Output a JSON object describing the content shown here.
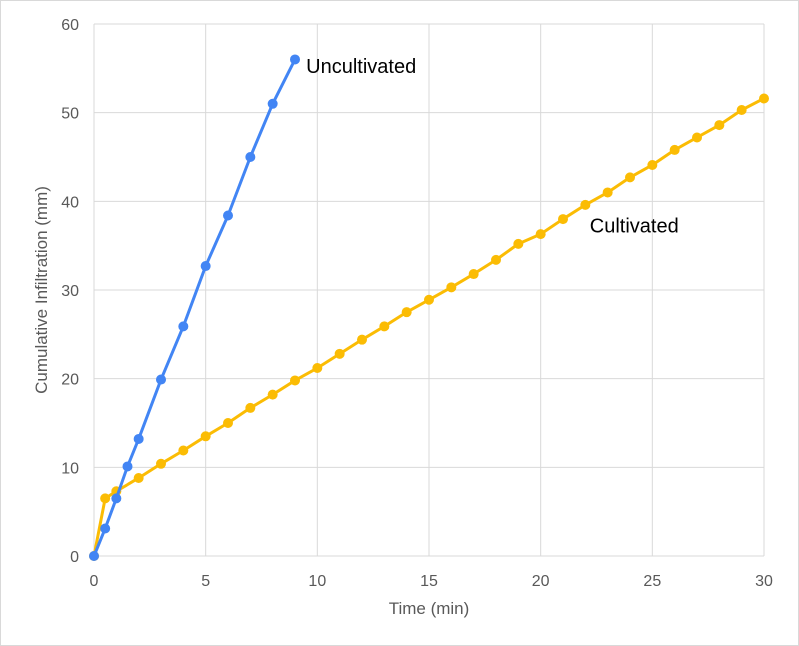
{
  "chart_data": {
    "type": "line",
    "title": "",
    "xlabel": "Time (min)",
    "ylabel": "Cumulative Infiltration (mm)",
    "xlim": [
      0,
      30
    ],
    "ylim": [
      0,
      60
    ],
    "xticks": [
      0,
      5,
      10,
      15,
      20,
      25,
      30
    ],
    "yticks": [
      0,
      10,
      20,
      30,
      40,
      50,
      60
    ],
    "grid": true,
    "legend": "none",
    "series": [
      {
        "name": "Uncultivated",
        "color": "#4285f4",
        "x": [
          0,
          0.5,
          1,
          1.5,
          2,
          3,
          4,
          5,
          6,
          7,
          8,
          9
        ],
        "y": [
          0,
          3.1,
          6.5,
          10.1,
          13.2,
          19.9,
          25.9,
          32.7,
          38.4,
          45.0,
          51.0,
          56.0
        ]
      },
      {
        "name": "Cultivated",
        "color": "#fbbc04",
        "x": [
          0,
          0.5,
          1,
          2,
          3,
          4,
          5,
          6,
          7,
          8,
          9,
          10,
          11,
          12,
          13,
          14,
          15,
          16,
          17,
          18,
          19,
          20,
          21,
          22,
          23,
          24,
          25,
          26,
          27,
          28,
          29,
          30
        ],
        "y": [
          0,
          6.5,
          7.3,
          8.8,
          10.4,
          11.9,
          13.5,
          15.0,
          16.7,
          18.2,
          19.8,
          21.2,
          22.8,
          24.4,
          25.9,
          27.5,
          28.9,
          30.3,
          31.8,
          33.4,
          35.2,
          36.3,
          38.0,
          39.6,
          41.0,
          42.7,
          44.1,
          45.8,
          47.2,
          48.6,
          50.3,
          51.6
        ]
      }
    ]
  }
}
